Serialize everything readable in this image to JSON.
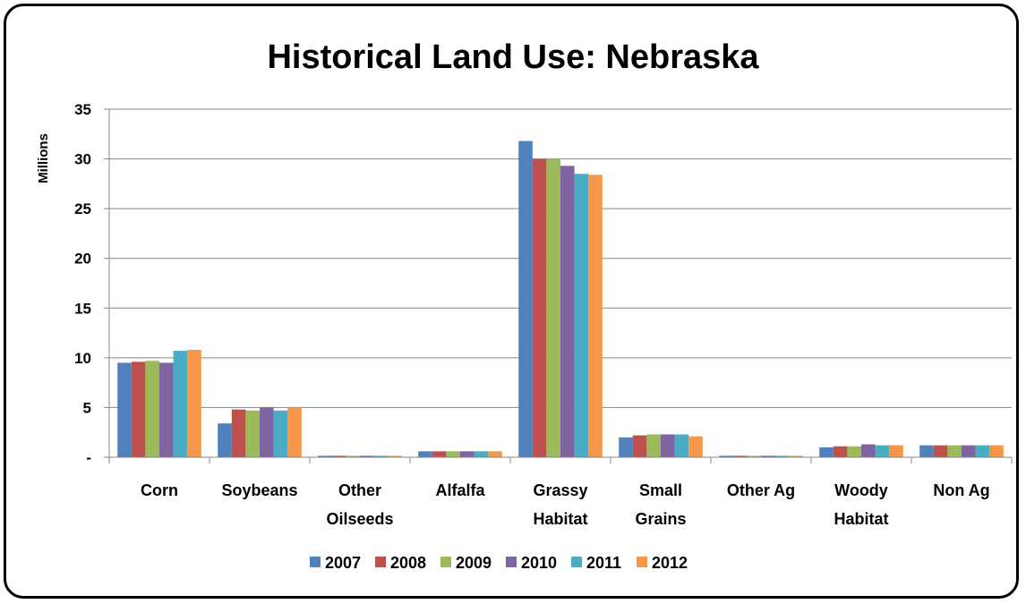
{
  "chart_data": {
    "type": "bar",
    "title": "Historical Land Use: Nebraska",
    "ylabel": "Millions",
    "xlabel": "",
    "ylim": [
      0,
      35
    ],
    "yticks": [
      "-",
      "5",
      "10",
      "15",
      "20",
      "25",
      "30",
      "35"
    ],
    "ytick_values": [
      0,
      5,
      10,
      15,
      20,
      25,
      30,
      35
    ],
    "categories": [
      [
        "Corn"
      ],
      [
        "Soybeans"
      ],
      [
        "Other",
        "Oilseeds"
      ],
      [
        "Alfalfa"
      ],
      [
        "Grassy",
        "Habitat"
      ],
      [
        "Small",
        "Grains"
      ],
      [
        "Other Ag"
      ],
      [
        "Woody",
        "Habitat"
      ],
      [
        "Non Ag"
      ]
    ],
    "series": [
      {
        "name": "2007",
        "color": "#4F81BD",
        "values": [
          9.5,
          3.4,
          0.15,
          0.6,
          31.8,
          2.0,
          0.15,
          1.0,
          1.2
        ]
      },
      {
        "name": "2008",
        "color": "#C0504D",
        "values": [
          9.6,
          4.8,
          0.15,
          0.6,
          30.0,
          2.2,
          0.15,
          1.1,
          1.2
        ]
      },
      {
        "name": "2009",
        "color": "#9BBB59",
        "values": [
          9.7,
          4.7,
          0.15,
          0.6,
          30.0,
          2.3,
          0.15,
          1.1,
          1.2
        ]
      },
      {
        "name": "2010",
        "color": "#8064A2",
        "values": [
          9.5,
          5.0,
          0.15,
          0.6,
          29.3,
          2.3,
          0.15,
          1.3,
          1.2
        ]
      },
      {
        "name": "2011",
        "color": "#4BACC6",
        "values": [
          10.7,
          4.7,
          0.15,
          0.6,
          28.5,
          2.3,
          0.15,
          1.2,
          1.2
        ]
      },
      {
        "name": "2012",
        "color": "#F79646",
        "values": [
          10.8,
          5.0,
          0.15,
          0.6,
          28.4,
          2.1,
          0.15,
          1.2,
          1.2
        ]
      }
    ],
    "grid": true,
    "legend_position": "bottom"
  }
}
